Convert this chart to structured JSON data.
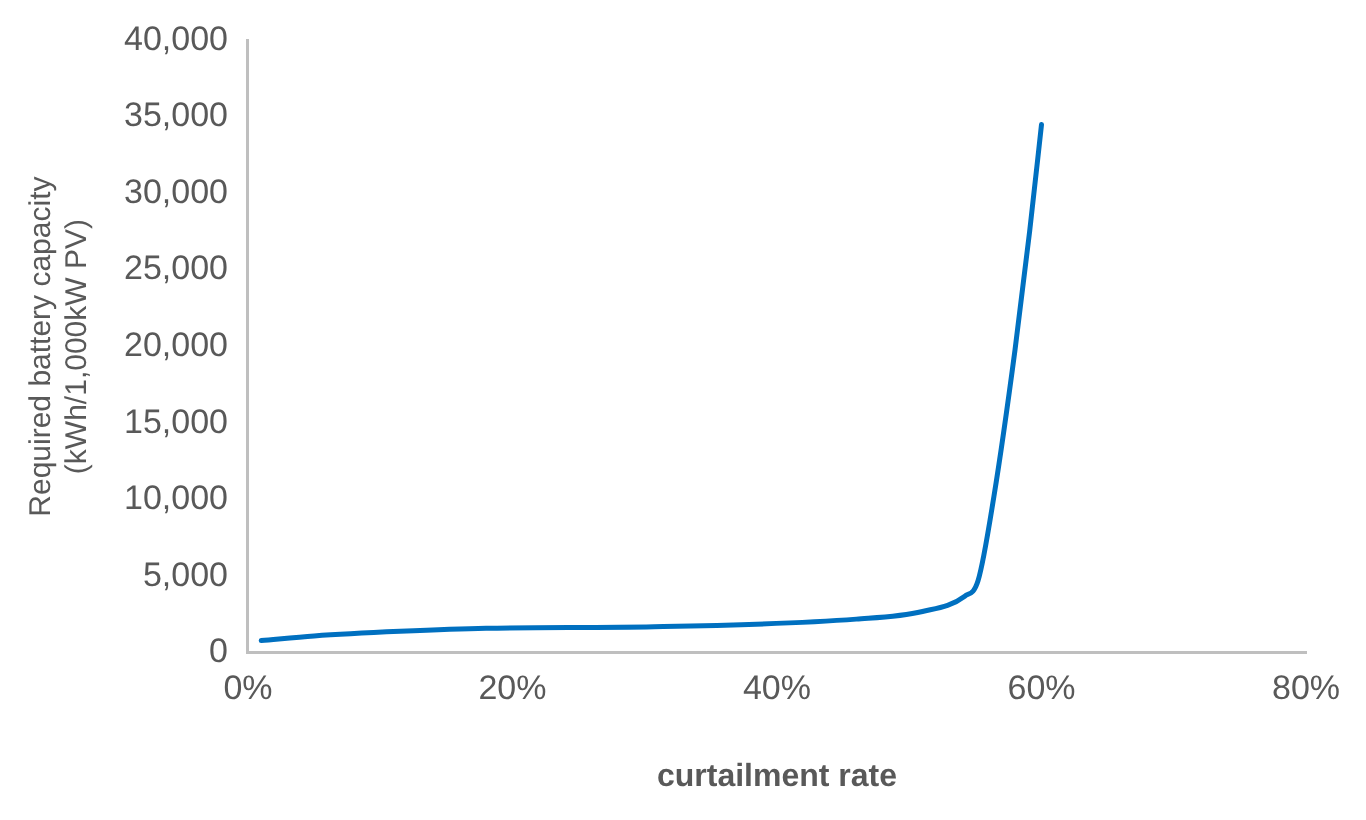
{
  "chart_data": {
    "type": "line",
    "xlabel": "curtailment rate",
    "ylabel": "Required battery capacity (kWh/1,000kW PV)",
    "x": [
      1,
      5,
      11.5,
      18,
      30.7,
      46,
      51,
      54.2,
      55.2,
      56.4,
      58,
      59.1,
      60
    ],
    "series": [
      {
        "color": "#0070c0",
        "values": [
          800,
          1100,
          1400,
          1600,
          1700,
          2200,
          2700,
          3700,
          4700,
          10200,
          19800,
          27500,
          34500
        ]
      }
    ],
    "xlim": [
      0,
      80
    ],
    "xticks": [
      {
        "value": 0,
        "label": "0%"
      },
      {
        "value": 20,
        "label": "20%"
      },
      {
        "value": 40,
        "label": "40%"
      },
      {
        "value": 60,
        "label": "60%"
      },
      {
        "value": 80,
        "label": "80%"
      }
    ],
    "ylim": [
      0,
      40000
    ],
    "yticks": [
      {
        "value": 0,
        "label": "0"
      },
      {
        "value": 5000,
        "label": "5,000"
      },
      {
        "value": 10000,
        "label": "10,000"
      },
      {
        "value": 15000,
        "label": "15,000"
      },
      {
        "value": 20000,
        "label": "20,000"
      },
      {
        "value": 25000,
        "label": "25,000"
      },
      {
        "value": 30000,
        "label": "30,000"
      },
      {
        "value": 35000,
        "label": "35,000"
      },
      {
        "value": 40000,
        "label": "40,000"
      }
    ],
    "grid": false,
    "legend": false,
    "marker": "none",
    "line_style": "solid"
  }
}
